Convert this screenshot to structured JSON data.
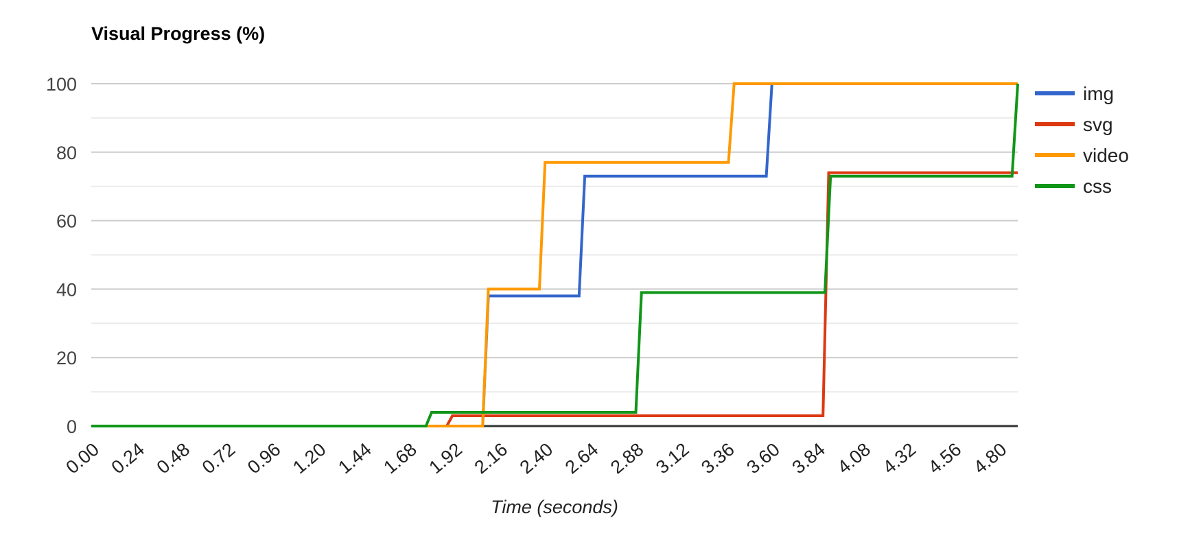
{
  "chart_data": {
    "type": "line",
    "title": "Visual Progress (%)",
    "xlabel": "Time (seconds)",
    "ylabel": "Visual Progress (%)",
    "xlim": [
      0,
      4.9
    ],
    "ylim": [
      0,
      100
    ],
    "x_unit": "seconds",
    "y_unit": "percent",
    "grid": "horizontal major + minor",
    "legend_position": "right",
    "x_tick_values": [
      0.0,
      0.24,
      0.48,
      0.72,
      0.96,
      1.2,
      1.44,
      1.68,
      1.92,
      2.16,
      2.4,
      2.64,
      2.88,
      3.12,
      3.36,
      3.6,
      3.84,
      4.08,
      4.32,
      4.56,
      4.8
    ],
    "x_tick_labels": [
      "0.00",
      "0.24",
      "0.48",
      "0.72",
      "0.96",
      "1.20",
      "1.44",
      "1.68",
      "1.92",
      "2.16",
      "2.40",
      "2.64",
      "2.88",
      "3.12",
      "3.36",
      "3.60",
      "3.84",
      "4.08",
      "4.32",
      "4.56",
      "4.80"
    ],
    "y_tick_values": [
      0,
      20,
      40,
      60,
      80,
      100
    ],
    "y_tick_labels": [
      "0",
      "20",
      "40",
      "60",
      "80",
      "100"
    ],
    "y_minor_tick_values": [
      10,
      30,
      50,
      70,
      90
    ],
    "series": [
      {
        "name": "img",
        "color": "#3366CC",
        "points": [
          [
            0,
            0
          ],
          [
            2.07,
            0
          ],
          [
            2.1,
            38
          ],
          [
            2.58,
            38
          ],
          [
            2.61,
            73
          ],
          [
            3.57,
            73
          ],
          [
            3.6,
            100
          ],
          [
            4.9,
            100
          ]
        ]
      },
      {
        "name": "svg",
        "color": "#DC3912",
        "points": [
          [
            0,
            0
          ],
          [
            1.88,
            0
          ],
          [
            1.91,
            3
          ],
          [
            3.87,
            3
          ],
          [
            3.9,
            74
          ],
          [
            4.9,
            74
          ]
        ]
      },
      {
        "name": "video",
        "color": "#FF9900",
        "points": [
          [
            0,
            0
          ],
          [
            2.07,
            0
          ],
          [
            2.1,
            40
          ],
          [
            2.37,
            40
          ],
          [
            2.4,
            77
          ],
          [
            3.37,
            77
          ],
          [
            3.4,
            100
          ],
          [
            4.9,
            100
          ]
        ]
      },
      {
        "name": "css",
        "color": "#109618",
        "points": [
          [
            0,
            0
          ],
          [
            1.77,
            0
          ],
          [
            1.8,
            4
          ],
          [
            2.88,
            4
          ],
          [
            2.91,
            39
          ],
          [
            3.88,
            39
          ],
          [
            3.91,
            73
          ],
          [
            4.87,
            73
          ],
          [
            4.9,
            100
          ]
        ]
      }
    ],
    "colors": {
      "background": "#ffffff",
      "major_grid": "#cccccc",
      "minor_grid": "#ebebeb",
      "baseline": "#333333",
      "y_tick_text": "#444444",
      "x_tick_text": "#222222",
      "title_text": "#000000",
      "axis_title_text": "#222222",
      "legend_text": "#222222"
    }
  }
}
